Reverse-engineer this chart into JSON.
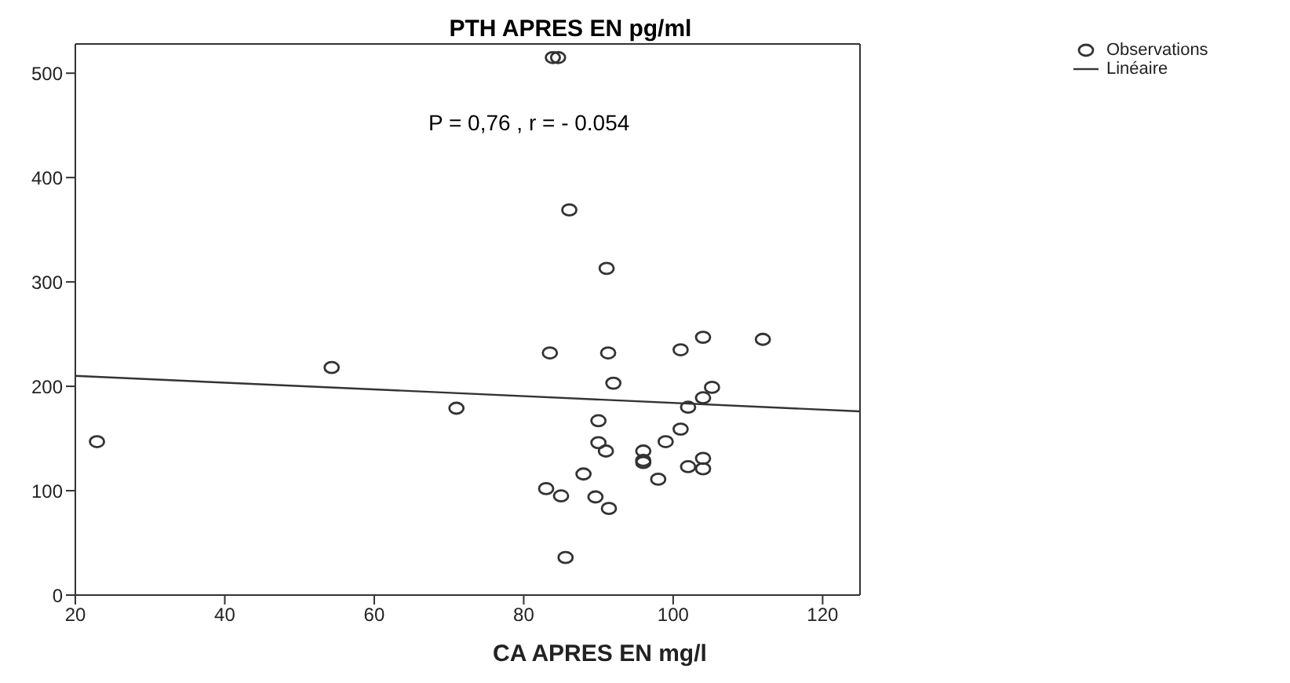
{
  "chart_data": {
    "type": "scatter",
    "title": "PTH APRES EN pg/ml",
    "xlabel": "CA APRES EN mg/l",
    "annotations": [
      "P = 0,76 , r = - 0.054"
    ],
    "xlim": [
      20,
      125
    ],
    "xticks": [
      20,
      40,
      60,
      80,
      100,
      120
    ],
    "ylim": [
      0,
      528
    ],
    "yticks": [
      0,
      100,
      200,
      300,
      400,
      500
    ],
    "legend": "top right",
    "series": [
      {
        "name": "Observations",
        "marker": "circle",
        "color": "#333333",
        "x": [
          83.5,
          91.3,
          101,
          104,
          112,
          92,
          105.2,
          104,
          102,
          90,
          101,
          90,
          91,
          96,
          99,
          96,
          96,
          102,
          104,
          104,
          88,
          98,
          83,
          85,
          89.6,
          91.4,
          85.6,
          83.9,
          84.6,
          86.1,
          91.1,
          22.9,
          54.3,
          71
        ],
        "values": [
          232,
          232,
          235,
          247,
          245,
          203,
          199,
          189,
          180,
          167,
          159,
          146,
          138,
          138,
          147,
          129,
          127,
          123,
          131,
          121,
          116,
          111,
          102,
          95,
          94,
          83,
          36,
          515,
          515,
          369,
          313,
          147,
          218,
          179
        ]
      },
      {
        "name": "Linéaire",
        "type": "line",
        "color": "#333333",
        "x": [
          20,
          125
        ],
        "values": [
          210,
          176
        ]
      }
    ]
  }
}
